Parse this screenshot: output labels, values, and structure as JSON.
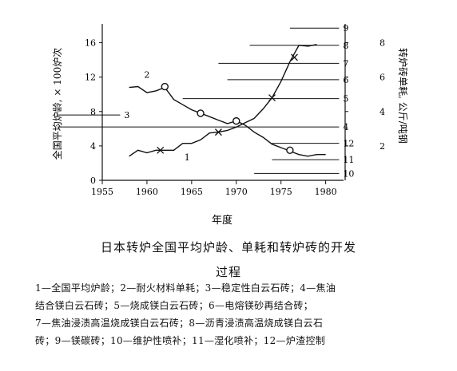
{
  "chart_data": {
    "type": "line",
    "title": "日本转炉全国平均炉龄、单耗和转炉砖的开发过程",
    "xlabel": "年度",
    "ylabel_left": "全国平均炉龄, × 100炉次",
    "ylabel_right": "转炉砖单耗, 公斤/吨钢",
    "xlim": [
      1955,
      1982
    ],
    "x_ticks": [
      "1955",
      "1960",
      "1965",
      "1970",
      "1975",
      "1980"
    ],
    "ylim_left": [
      0,
      18
    ],
    "y_ticks_left": [
      "0",
      "4",
      "8",
      "12",
      "16"
    ],
    "ylim_right": [
      0,
      9
    ],
    "y_ticks_right": [
      "2",
      "4",
      "6",
      "8"
    ],
    "series": [
      {
        "name": "1",
        "axis": "left",
        "x": [
          1958,
          1959,
          1960,
          1961,
          1962,
          1963,
          1964,
          1965,
          1966,
          1967,
          1968,
          1969,
          1970,
          1971,
          1972,
          1973,
          1974,
          1975,
          1976,
          1977,
          1978,
          1979
        ],
        "y": [
          2.8,
          3.5,
          3.2,
          3.5,
          3.5,
          3.5,
          4.3,
          4.3,
          4.7,
          5.5,
          5.6,
          5.8,
          6.2,
          6.7,
          7.2,
          8.3,
          9.6,
          11.5,
          13.8,
          15.7,
          15.6,
          15.8
        ],
        "markers": [
          {
            "x": 1961.5,
            "y": 3.5
          },
          {
            "x": 1968,
            "y": 5.6
          },
          {
            "x": 1974,
            "y": 9.6
          },
          {
            "x": 1976.5,
            "y": 14.3
          }
        ]
      },
      {
        "name": "2",
        "axis": "right",
        "x": [
          1958,
          1959,
          1960,
          1961,
          1962,
          1963,
          1964,
          1965,
          1966,
          1967,
          1968,
          1969,
          1970,
          1971,
          1972,
          1973,
          1974,
          1975,
          1976,
          1977,
          1978,
          1979,
          1980
        ],
        "y": [
          5.4,
          5.45,
          5.1,
          5.2,
          5.4,
          4.7,
          4.4,
          4.1,
          3.9,
          3.7,
          3.5,
          3.3,
          3.45,
          3.2,
          2.8,
          2.5,
          2.1,
          1.9,
          1.7,
          1.5,
          1.4,
          1.5,
          1.5
        ],
        "markers": [
          {
            "x": 1962,
            "y": 5.45
          },
          {
            "x": 1966,
            "y": 3.9
          },
          {
            "x": 1970,
            "y": 3.45
          },
          {
            "x": 1976,
            "y": 1.75
          }
        ]
      }
    ],
    "development_lines": [
      {
        "label": "9",
        "x_start": 1976,
        "x_end": 1981.5,
        "y": 17.7
      },
      {
        "label": "8",
        "x_start": 1971.5,
        "x_end": 1981.5,
        "y": 15.7
      },
      {
        "label": "7",
        "x_start": 1968,
        "x_end": 1981.5,
        "y": 13.6
      },
      {
        "label": "6",
        "x_start": 1969,
        "x_end": 1981.5,
        "y": 11.7
      },
      {
        "label": "5",
        "x_start": 1964,
        "x_end": 1981.5,
        "y": 9.5
      },
      {
        "label": "4",
        "x_start": 1950,
        "x_end": 1981.5,
        "y": 6.2
      },
      {
        "label": "3",
        "x_start": 1950,
        "x_end": 1957,
        "y": 7.6
      },
      {
        "label": "12",
        "x_start": 1974,
        "x_end": 1981.5,
        "y": 4.3
      },
      {
        "label": "11",
        "x_start": 1974,
        "x_end": 1981.5,
        "y": 2.4
      },
      {
        "label": "10",
        "x_start": 1972,
        "x_end": 1981.5,
        "y": 0.8
      }
    ]
  },
  "caption": {
    "title_line1": "日本转炉全国平均炉龄、单耗和转炉砖的开发",
    "title_line2": "过程"
  },
  "legend_text": [
    "1—全国平均炉龄；2—耐火材料单耗；3—稳定性白云石砖；4—焦油",
    "结合镁白云石砖；5—烧成镁白云石砖；6—电熔镁砂再结合砖；",
    "7—焦油浸渍高温烧成镁白云石砖；8—沥青浸渍高温烧成镁白云石",
    "砖；9—镁碳砖；10—维护性喷补；11—湿化喷补；12—炉渣控制"
  ]
}
